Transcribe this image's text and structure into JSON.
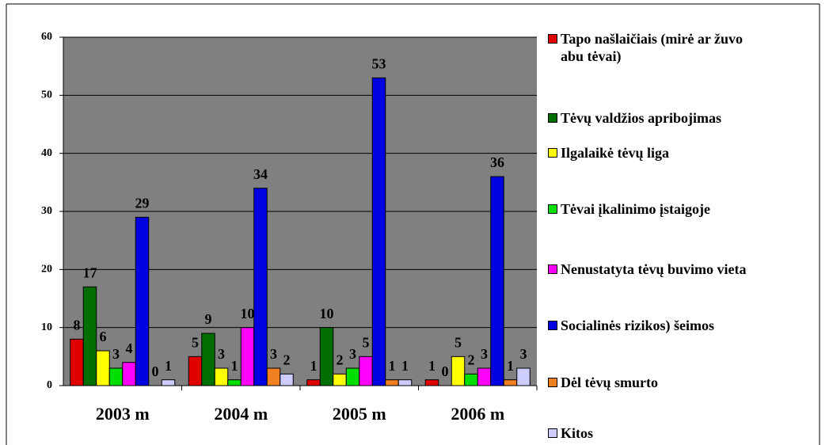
{
  "chart_data": {
    "type": "bar",
    "categories": [
      "2003 m",
      "2004 m",
      "2005 m",
      "2006 m"
    ],
    "series": [
      {
        "name": "Tapo našlaičiais (mirė ar žuvo abu tėvai)",
        "color": "#e00000",
        "values": [
          8,
          5,
          1,
          1
        ]
      },
      {
        "name": "Tėvų valdžios apribojimas",
        "color": "#006e00",
        "values": [
          17,
          9,
          10,
          0
        ]
      },
      {
        "name": "Ilgalaikė tėvų liga",
        "color": "#ffff00",
        "values": [
          6,
          3,
          2,
          5
        ]
      },
      {
        "name": "Tėvai įkalinimo įstaigoje",
        "color": "#00dd00",
        "values": [
          3,
          1,
          3,
          2
        ]
      },
      {
        "name": "Nenustatyta tėvų buvimo vieta",
        "color": "#ff00ff",
        "values": [
          4,
          10,
          5,
          3
        ]
      },
      {
        "name": "Socialinės rizikos) šeimos",
        "color": "#0000e0",
        "values": [
          29,
          34,
          53,
          36
        ]
      },
      {
        "name": "Dėl tėvų smurto",
        "color": "#f08020",
        "values": [
          0,
          3,
          1,
          1
        ]
      },
      {
        "name": "Kitos",
        "color": "#ccccff",
        "values": [
          1,
          2,
          1,
          3
        ]
      }
    ],
    "ylim": [
      0,
      60
    ],
    "yticks": [
      0,
      10,
      20,
      30,
      40,
      50,
      60
    ],
    "grid": true,
    "legend": "right"
  }
}
